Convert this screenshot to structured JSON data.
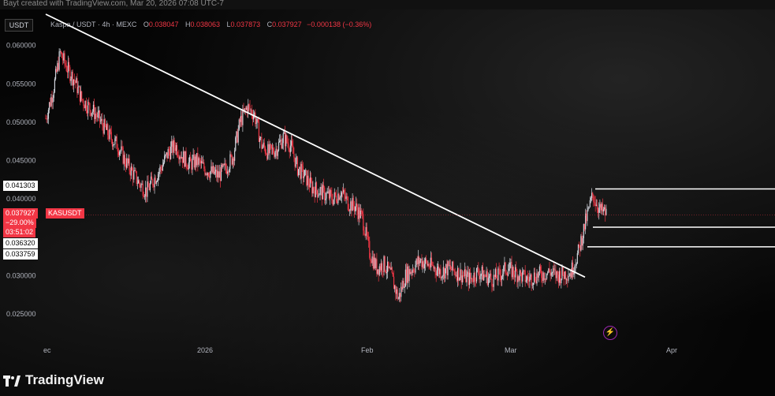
{
  "banner": {
    "text": "Bayt created with TradingView.com, Mar 20, 2026 07:08 UTC-7"
  },
  "legend": {
    "symbol": "Kaspa / USDT · 4h · MEXC",
    "open_label": "O",
    "open": "0.038047",
    "high_label": "H",
    "high": "0.038063",
    "low_label": "L",
    "low": "0.037873",
    "close_label": "C",
    "close": "0.037927",
    "change": "−0.000138 (−0.36%)"
  },
  "axis": {
    "unit": "USDT"
  },
  "price_tags": {
    "level_top": "0.041303",
    "current": "0.037927",
    "ticker": "KASUSDT",
    "pct": "−29.00%",
    "countdown": "03:51:02",
    "level_mid": "0.036320",
    "level_low": "0.033759"
  },
  "branding": {
    "name": "TradingView",
    "icon": "tradingview-logo-icon"
  },
  "colors": {
    "up": "#d1d4dc",
    "down": "#f23645",
    "line": "#ffffff",
    "bg": "#000000"
  },
  "chart_data": {
    "type": "line",
    "title": "",
    "xlabel": "",
    "ylabel": "USDT",
    "ylim": [
      0.025,
      0.061
    ],
    "x_ticks": [
      "ec",
      "2026",
      "Feb",
      "Mar",
      "Apr"
    ],
    "y_ticks": [
      "0.060000",
      "0.055000",
      "0.050000",
      "0.045000",
      "0.040000",
      "0.030000",
      "0.025000"
    ],
    "series": [
      {
        "values": [
          0.0505,
          0.054,
          0.059,
          0.057,
          0.0555,
          0.053,
          0.052,
          0.051,
          0.0495,
          0.048,
          0.047,
          0.045,
          0.0435,
          0.042,
          0.041,
          0.0425,
          0.044,
          0.046,
          0.047,
          0.0455,
          0.0445,
          0.045,
          0.044,
          0.0435,
          0.043,
          0.044,
          0.0455,
          0.05,
          0.052,
          0.051,
          0.047,
          0.046,
          0.0465,
          0.048,
          0.047,
          0.044,
          0.043,
          0.0415,
          0.041,
          0.0405,
          0.04,
          0.041,
          0.0395,
          0.039,
          0.0375,
          0.033,
          0.031,
          0.0315,
          0.03,
          0.027,
          0.03,
          0.031,
          0.032,
          0.0315,
          0.031,
          0.0305,
          0.031,
          0.0305,
          0.03,
          0.0295,
          0.0305,
          0.03,
          0.0295,
          0.03,
          0.031,
          0.0305,
          0.03,
          0.0295,
          0.03,
          0.0302,
          0.0305,
          0.03,
          0.0302,
          0.0305,
          0.033,
          0.037,
          0.0405,
          0.0385,
          0.038
        ]
      }
    ],
    "trendline": {
      "start_value": 0.0612,
      "end_value": 0.0298
    },
    "horizontal_levels": [
      0.041303,
      0.03632,
      0.033759
    ],
    "current_price": 0.037927,
    "grid": false
  }
}
